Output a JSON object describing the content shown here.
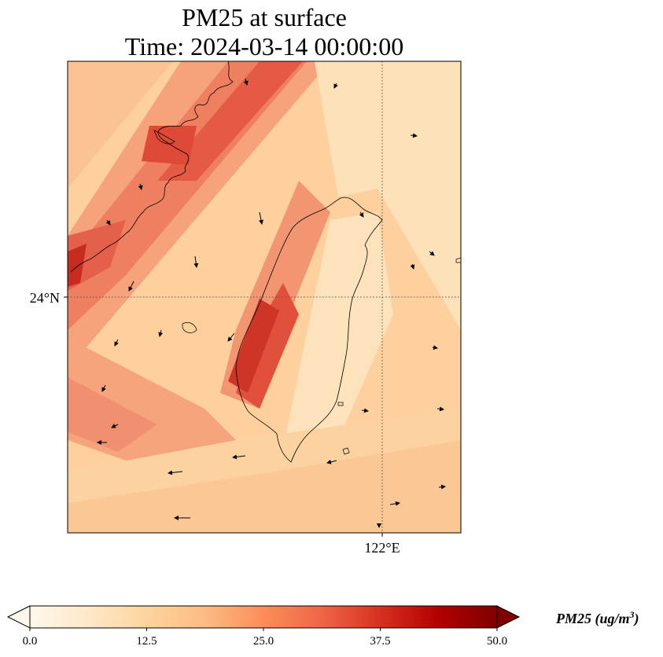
{
  "title": {
    "line1": "PM25 at surface",
    "line2": "Time: 2024-03-14 00:00:00"
  },
  "axes": {
    "lat_label": "24°N",
    "lon_label": "122°E"
  },
  "colorbar": {
    "label": "PM25 (ug/m",
    "label_exponent": "3",
    "label_close": ")",
    "ticks": [
      "0.0",
      "12.5",
      "25.0",
      "37.5",
      "50.0"
    ],
    "min": 0,
    "max": 50,
    "colormap": "OrRd",
    "extend": "both"
  },
  "colors": {
    "low": "#fff7ec",
    "mid": "#fdbb84",
    "high": "#d7301f",
    "max": "#7f0000",
    "coastline": "#000000",
    "gridline": "#555555"
  },
  "chart_data": {
    "type": "heatmap",
    "variable": "PM25",
    "units": "ug/m^3",
    "level": "surface",
    "time": "2024-03-14 00:00:00",
    "value_range": [
      0,
      50
    ],
    "gridlines": {
      "lat": [
        24
      ],
      "lon": [
        122
      ]
    },
    "overlays": [
      "coastlines",
      "wind-vectors"
    ]
  }
}
